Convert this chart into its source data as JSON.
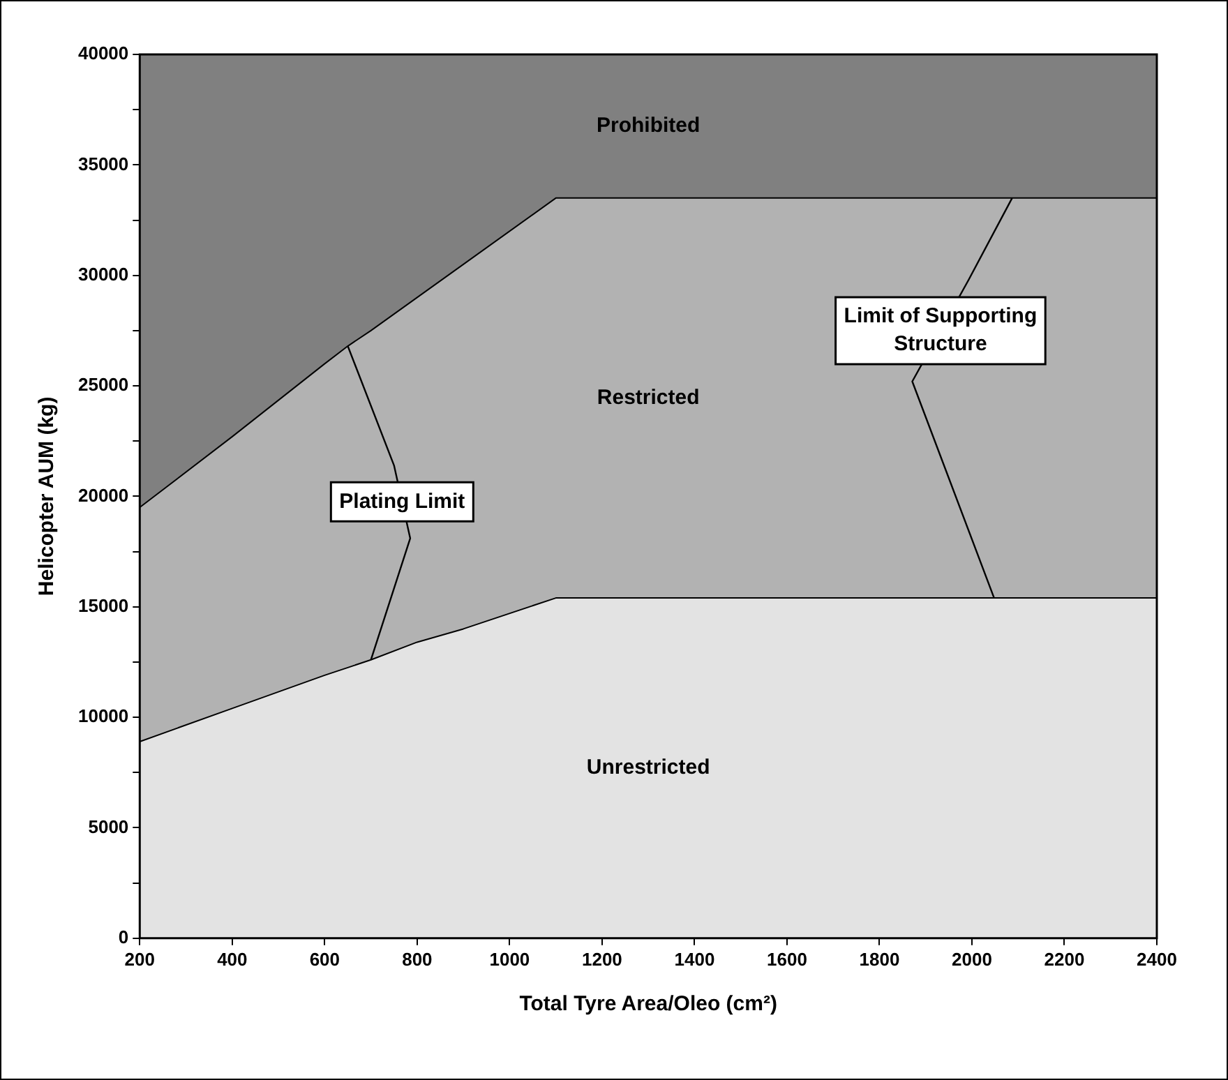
{
  "chart_data": {
    "type": "area",
    "stacked": true,
    "xlabel": "Total Tyre Area/Oleo (cm²)",
    "ylabel": "Helicopter AUM (kg)",
    "x": [
      200,
      400,
      600,
      650,
      700,
      800,
      900,
      1100,
      2400
    ],
    "series": [
      {
        "name": "Unrestricted",
        "color": "#e3e3e3",
        "values": [
          8900,
          10400,
          11900,
          12250,
          12600,
          13400,
          14000,
          15400,
          15400
        ]
      },
      {
        "name": "Restricted",
        "color": "#b2b2b2",
        "values": [
          10600,
          12300,
          14100,
          14550,
          14900,
          15600,
          16500,
          18100,
          18100
        ]
      },
      {
        "name": "Prohibited",
        "color": "#808080",
        "values": [
          20500,
          17300,
          14000,
          13200,
          12500,
          11000,
          9500,
          6500,
          6500
        ]
      },
      {
        "name": "Plating Limit",
        "type": "line",
        "color": "#000000",
        "x": [
          650,
          750,
          785,
          700
        ],
        "values": [
          26800,
          21400,
          18100,
          12600
        ]
      },
      {
        "name": "Limit of Supporting Structure",
        "type": "line",
        "color": "#000000",
        "x": [
          2087,
          1993,
          1871,
          2048
        ],
        "values": [
          33500,
          29800,
          25200,
          15400
        ]
      }
    ],
    "xlim": [
      200,
      2400
    ],
    "xticks": [
      200,
      400,
      600,
      800,
      1000,
      1200,
      1400,
      1600,
      1800,
      2000,
      2200,
      2400
    ],
    "ylim": [
      0,
      40000
    ],
    "yticks": [
      0,
      {
        "value": 2500,
        "label": null
      },
      5000,
      {
        "value": 7500,
        "label": null
      },
      10000,
      {
        "value": 12500,
        "label": null
      },
      15000,
      {
        "value": 17500,
        "label": null
      },
      20000,
      {
        "value": 22500,
        "label": null
      },
      25000,
      {
        "value": 27500,
        "label": null
      },
      30000,
      {
        "value": 32500,
        "label": null
      },
      35000,
      {
        "value": 37500,
        "label": null
      },
      40000
    ],
    "legend": false,
    "marker": "none"
  }
}
